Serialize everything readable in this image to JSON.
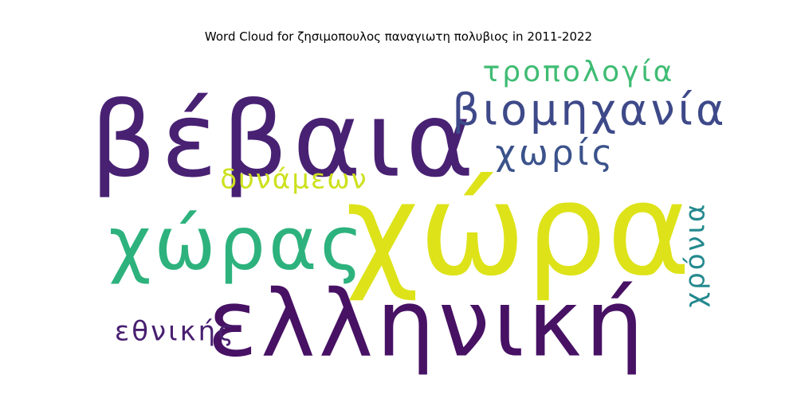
{
  "chart_data": {
    "type": "wordcloud",
    "title": "Word Cloud for ζησιμοπουλος παναγιωτη πολυβιος in 2011-2022",
    "background": "#ffffff",
    "words": [
      {
        "text": "χώρα",
        "weight": 1.0,
        "color": "#dde318",
        "orientation": "horizontal"
      },
      {
        "text": "βέβαια",
        "weight": 0.85,
        "color": "#482173",
        "orientation": "horizontal"
      },
      {
        "text": "ελληνική",
        "weight": 0.78,
        "color": "#471164",
        "orientation": "horizontal"
      },
      {
        "text": "χώρας",
        "weight": 0.62,
        "color": "#2db27d",
        "orientation": "horizontal"
      },
      {
        "text": "βιομηχανία",
        "weight": 0.36,
        "color": "#3e4989",
        "orientation": "horizontal"
      },
      {
        "text": "χωρίς",
        "weight": 0.3,
        "color": "#3b528b",
        "orientation": "horizontal"
      },
      {
        "text": "τροπολογία",
        "weight": 0.27,
        "color": "#3fbc73",
        "orientation": "horizontal"
      },
      {
        "text": "δυνάμεων",
        "weight": 0.26,
        "color": "#cde11d",
        "orientation": "horizontal"
      },
      {
        "text": "εθνικής",
        "weight": 0.26,
        "color": "#481f70",
        "orientation": "horizontal"
      },
      {
        "text": "χρόνια",
        "weight": 0.25,
        "color": "#23898e",
        "orientation": "vertical"
      }
    ]
  }
}
